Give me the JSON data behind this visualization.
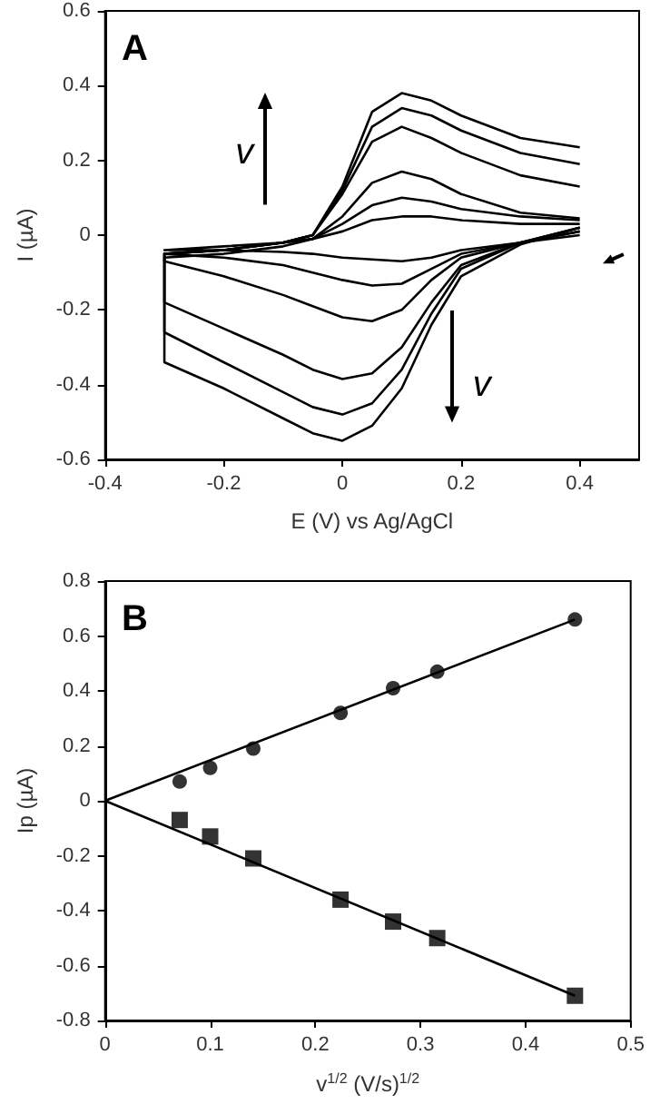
{
  "chart_data": [
    {
      "type": "line",
      "title": "A",
      "xlabel": "E (V) vs Ag/AgCl",
      "ylabel": "I (µA)",
      "xlim": [
        -0.4,
        0.5
      ],
      "xticks": [
        -0.4,
        -0.2,
        0,
        0.2,
        0.4
      ],
      "ylim": [
        -0.6,
        0.6
      ],
      "yticks": [
        -0.6,
        -0.4,
        -0.2,
        0,
        0.2,
        0.4,
        0.6
      ],
      "grid": false,
      "marker": "none",
      "line_style": "solid",
      "annotations": [
        "v",
        "v"
      ],
      "series": [
        {
          "color": "#000000",
          "x": [
            0.4,
            0.3,
            0.2,
            0.15,
            0.1,
            0.05,
            0,
            -0.05,
            -0.1,
            -0.2,
            -0.3,
            -0.3,
            -0.2,
            -0.1,
            -0.05,
            0,
            0.05,
            0.1,
            0.15,
            0.2,
            0.3,
            0.4
          ],
          "values": [
            0.02,
            -0.025,
            -0.11,
            -0.24,
            -0.41,
            -0.51,
            -0.55,
            -0.53,
            -0.49,
            -0.41,
            -0.34,
            -0.05,
            -0.04,
            -0.02,
            0.0,
            0.13,
            0.33,
            0.38,
            0.36,
            0.32,
            0.26,
            0.235
          ]
        },
        {
          "color": "#000000",
          "x": [
            0.4,
            0.3,
            0.2,
            0.15,
            0.1,
            0.05,
            0,
            -0.05,
            -0.1,
            -0.2,
            -0.3,
            -0.3,
            -0.2,
            -0.1,
            -0.05,
            0,
            0.05,
            0.1,
            0.15,
            0.2,
            0.3,
            0.4
          ],
          "values": [
            0.02,
            -0.02,
            -0.09,
            -0.21,
            -0.36,
            -0.45,
            -0.48,
            -0.46,
            -0.42,
            -0.34,
            -0.26,
            -0.05,
            -0.04,
            -0.02,
            0.0,
            0.12,
            0.29,
            0.34,
            0.32,
            0.28,
            0.22,
            0.19
          ]
        },
        {
          "color": "#000000",
          "x": [
            0.4,
            0.3,
            0.2,
            0.15,
            0.1,
            0.05,
            0,
            -0.05,
            -0.1,
            -0.2,
            -0.3,
            -0.3,
            -0.2,
            -0.1,
            -0.05,
            0,
            0.05,
            0.1,
            0.15,
            0.2,
            0.3,
            0.4
          ],
          "values": [
            0.02,
            -0.02,
            -0.08,
            -0.18,
            -0.3,
            -0.37,
            -0.385,
            -0.36,
            -0.32,
            -0.25,
            -0.18,
            -0.05,
            -0.04,
            -0.02,
            0.0,
            0.11,
            0.25,
            0.29,
            0.26,
            0.22,
            0.16,
            0.13
          ]
        },
        {
          "color": "#000000",
          "x": [
            0.4,
            0.3,
            0.2,
            0.15,
            0.1,
            0.05,
            0,
            -0.05,
            -0.1,
            -0.2,
            -0.3,
            -0.3,
            -0.2,
            -0.1,
            -0.05,
            0,
            0.05,
            0.1,
            0.15,
            0.2,
            0.3,
            0.4
          ],
          "values": [
            0.01,
            -0.02,
            -0.06,
            -0.12,
            -0.2,
            -0.23,
            -0.22,
            -0.19,
            -0.16,
            -0.11,
            -0.07,
            -0.06,
            -0.05,
            -0.03,
            -0.01,
            0.05,
            0.14,
            0.17,
            0.15,
            0.11,
            0.06,
            0.045
          ]
        },
        {
          "color": "#000000",
          "x": [
            0.4,
            0.3,
            0.2,
            0.15,
            0.1,
            0.05,
            0,
            -0.05,
            -0.1,
            -0.2,
            -0.3,
            -0.3,
            -0.2,
            -0.1,
            -0.05,
            0,
            0.05,
            0.1,
            0.15,
            0.2,
            0.3,
            0.4
          ],
          "values": [
            0.01,
            -0.02,
            -0.05,
            -0.09,
            -0.13,
            -0.135,
            -0.12,
            -0.1,
            -0.08,
            -0.06,
            -0.05,
            -0.05,
            -0.04,
            -0.02,
            -0.01,
            0.03,
            0.08,
            0.1,
            0.09,
            0.07,
            0.05,
            0.04
          ]
        },
        {
          "color": "#000000",
          "x": [
            0.4,
            0.3,
            0.2,
            0.15,
            0.1,
            0.05,
            0,
            -0.05,
            -0.1,
            -0.2,
            -0.3,
            -0.3,
            -0.2,
            -0.1,
            -0.05,
            0,
            0.05,
            0.1,
            0.15,
            0.2,
            0.3,
            0.4
          ],
          "values": [
            0.0,
            -0.02,
            -0.04,
            -0.06,
            -0.07,
            -0.065,
            -0.06,
            -0.05,
            -0.045,
            -0.04,
            -0.04,
            -0.04,
            -0.03,
            -0.02,
            -0.01,
            0.01,
            0.04,
            0.05,
            0.05,
            0.04,
            0.03,
            0.03
          ]
        }
      ]
    },
    {
      "type": "scatter",
      "title": "B",
      "xlabel": "v$^{1/2}$ (V/s)$^{1/2}$",
      "ylabel": "Ip (µA)",
      "xlim": [
        0,
        0.5
      ],
      "xticks": [
        0,
        0.1,
        0.2,
        0.3,
        0.4,
        0.5
      ],
      "ylim": [
        -0.8,
        0.8
      ],
      "yticks": [
        -0.8,
        -0.6,
        -0.4,
        -0.2,
        0,
        0.2,
        0.4,
        0.6,
        0.8
      ],
      "grid": false,
      "series": [
        {
          "marker": "circle",
          "color": "#000000",
          "x": [
            0.071,
            0.1,
            0.141,
            0.224,
            0.274,
            0.316,
            0.447
          ],
          "values": [
            0.07,
            0.12,
            0.19,
            0.32,
            0.41,
            0.47,
            0.66
          ]
        },
        {
          "marker": "square",
          "color": "#000000",
          "x": [
            0.071,
            0.1,
            0.141,
            0.224,
            0.274,
            0.316,
            0.447
          ],
          "values": [
            -0.07,
            -0.13,
            -0.21,
            -0.36,
            -0.44,
            -0.5,
            -0.71
          ]
        },
        {
          "type": "line",
          "marker": "none",
          "color": "#000000",
          "x": [
            0,
            0.447
          ],
          "values": [
            0,
            0.66
          ]
        },
        {
          "type": "line",
          "marker": "none",
          "color": "#000000",
          "x": [
            0,
            0.447
          ],
          "values": [
            0,
            -0.71
          ]
        }
      ]
    }
  ]
}
